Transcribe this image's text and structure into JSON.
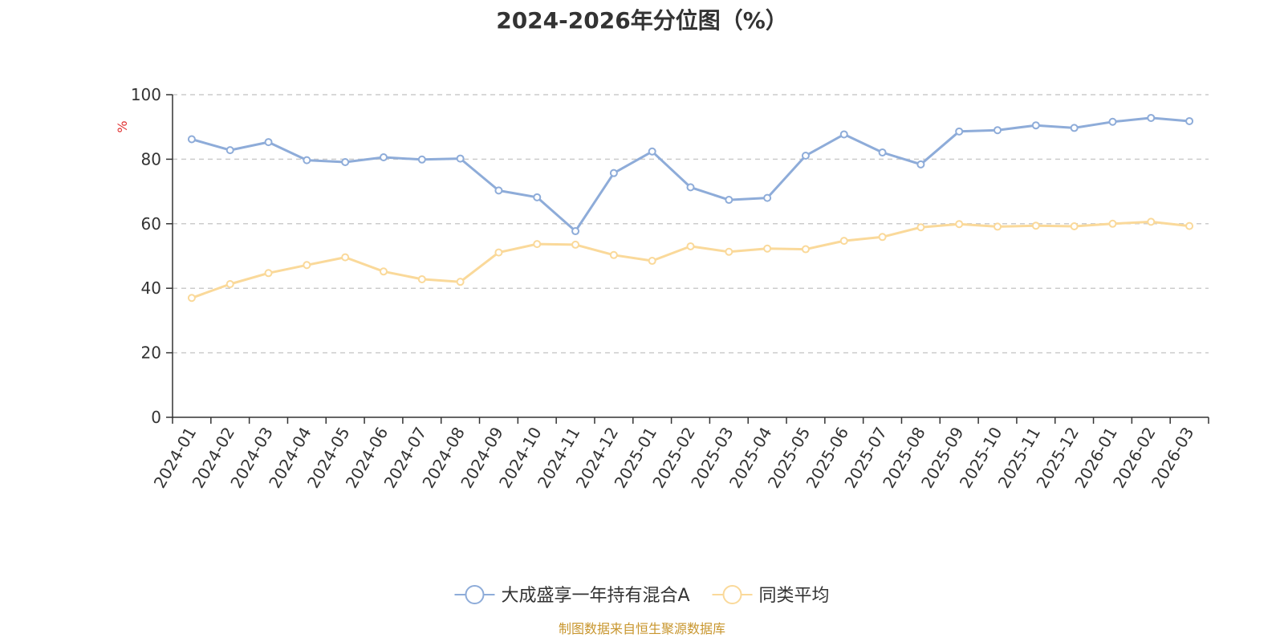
{
  "chart_data": {
    "type": "line",
    "title": "2024-2026年分位图（%）",
    "ylabel": "%",
    "xlabel": "",
    "ylim": [
      0,
      100
    ],
    "yticks": [
      0,
      20,
      40,
      60,
      80,
      100
    ],
    "grid": "horizontal-dashed",
    "legend_position": "bottom-center",
    "categories": [
      "2024-01",
      "2024-02",
      "2024-03",
      "2024-04",
      "2024-05",
      "2024-06",
      "2024-07",
      "2024-08",
      "2024-09",
      "2024-10",
      "2024-11",
      "2024-12",
      "2025-01",
      "2025-02",
      "2025-03",
      "2025-04",
      "2025-05",
      "2025-06",
      "2025-07",
      "2025-08",
      "2025-09",
      "2025-10",
      "2025-11",
      "2025-12",
      "2026-01",
      "2026-02",
      "2026-03"
    ],
    "series": [
      {
        "name": "大成盛享一年持有混合A",
        "color": "#8eacd9",
        "values": [
          86.2,
          82.8,
          85.3,
          79.7,
          79.1,
          80.6,
          79.9,
          80.2,
          70.3,
          68.2,
          57.7,
          75.7,
          82.4,
          71.3,
          67.4,
          68.0,
          81.1,
          87.7,
          82.1,
          78.4,
          88.6,
          89.0,
          90.5,
          89.7,
          91.6,
          92.8,
          91.8
        ]
      },
      {
        "name": "同类平均",
        "color": "#fad99a",
        "values": [
          37.0,
          41.3,
          44.7,
          47.2,
          49.6,
          45.2,
          42.8,
          42.0,
          51.1,
          53.7,
          53.5,
          50.3,
          48.5,
          53.0,
          51.3,
          52.3,
          52.1,
          54.7,
          55.9,
          58.9,
          59.9,
          59.1,
          59.4,
          59.2,
          60.0,
          60.6,
          59.3
        ]
      }
    ]
  },
  "source_note": "制图数据来自恒生聚源数据库",
  "source_note_color": "#c8962e",
  "ylabel_color": "#e03030",
  "axis_color": "#333333",
  "grid_color": "#cccccc"
}
